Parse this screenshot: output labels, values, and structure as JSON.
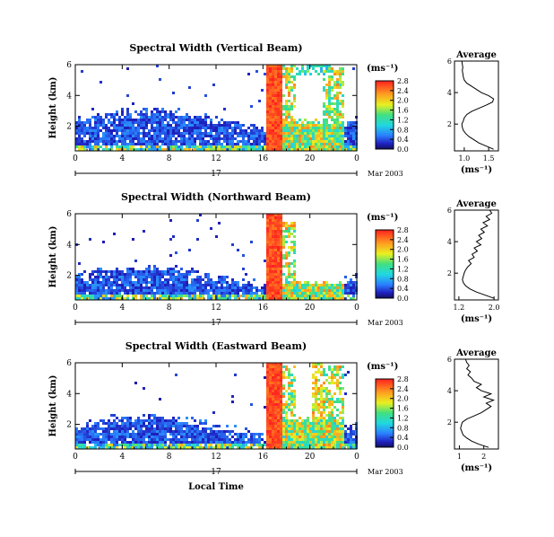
{
  "chart_data": [
    {
      "type": "heatmap",
      "title": "Spectral Width (Vertical Beam)",
      "ylabel": "Height (km)",
      "x_ticks": [
        "0",
        "4",
        "8",
        "12",
        "16",
        "20",
        "0"
      ],
      "y_ticks": [
        "2",
        "4",
        "6"
      ],
      "xlim": [
        0,
        24
      ],
      "ylim": [
        0.4,
        6
      ],
      "day_label": "17",
      "date_label": "Mar 2003",
      "colorbar": {
        "unit": "(ms⁻¹)",
        "ticks": [
          "0.0",
          "0.4",
          "0.8",
          "1.2",
          "1.6",
          "2.0",
          "2.4",
          "2.8"
        ],
        "range": [
          0,
          2.8
        ]
      },
      "average": {
        "title": "Average",
        "xlabel": "(ms⁻¹)",
        "x_ticks": [
          "1.0",
          "1.5"
        ],
        "y_ticks": [
          "2",
          "4",
          "6"
        ],
        "xlim": [
          0.8,
          1.7
        ],
        "ylim": [
          0.3,
          6
        ],
        "profile": [
          [
            0.4,
            1.6
          ],
          [
            0.6,
            1.45
          ],
          [
            0.8,
            1.3
          ],
          [
            1.0,
            1.2
          ],
          [
            1.2,
            1.1
          ],
          [
            1.4,
            1.03
          ],
          [
            1.6,
            0.98
          ],
          [
            1.8,
            0.96
          ],
          [
            2.0,
            0.95
          ],
          [
            2.2,
            0.98
          ],
          [
            2.4,
            1.0
          ],
          [
            2.6,
            1.05
          ],
          [
            2.8,
            1.15
          ],
          [
            3.0,
            1.3
          ],
          [
            3.2,
            1.45
          ],
          [
            3.4,
            1.58
          ],
          [
            3.6,
            1.6
          ],
          [
            3.8,
            1.5
          ],
          [
            4.0,
            1.35
          ],
          [
            4.2,
            1.25
          ],
          [
            4.4,
            1.15
          ],
          [
            4.6,
            1.05
          ],
          [
            4.8,
            1.0
          ],
          [
            5.0,
            0.98
          ],
          [
            5.2,
            0.97
          ],
          [
            5.4,
            0.96
          ],
          [
            5.6,
            0.97
          ],
          [
            5.8,
            0.96
          ],
          [
            6.0,
            0.95
          ]
        ]
      }
    },
    {
      "type": "heatmap",
      "title": "Spectral Width (Northward Beam)",
      "ylabel": "Height (km)",
      "x_ticks": [
        "0",
        "4",
        "8",
        "12",
        "16",
        "20",
        "0"
      ],
      "y_ticks": [
        "2",
        "4",
        "6"
      ],
      "xlim": [
        0,
        24
      ],
      "ylim": [
        0.4,
        6
      ],
      "day_label": "17",
      "date_label": "Mar 2003",
      "colorbar": {
        "unit": "(ms⁻¹)",
        "ticks": [
          "0.0",
          "0.4",
          "0.8",
          "1.2",
          "1.6",
          "2.0",
          "2.4",
          "2.8"
        ],
        "range": [
          0,
          2.8
        ]
      },
      "average": {
        "title": "Average",
        "xlabel": "(ms⁻¹)",
        "x_ticks": [
          "1.2",
          "2.0"
        ],
        "y_ticks": [
          "2",
          "4",
          "6"
        ],
        "xlim": [
          1.1,
          2.1
        ],
        "ylim": [
          0.3,
          6
        ],
        "profile": [
          [
            0.4,
            2.0
          ],
          [
            0.6,
            1.8
          ],
          [
            0.8,
            1.6
          ],
          [
            1.0,
            1.45
          ],
          [
            1.2,
            1.35
          ],
          [
            1.4,
            1.3
          ],
          [
            1.6,
            1.28
          ],
          [
            1.8,
            1.3
          ],
          [
            2.0,
            1.32
          ],
          [
            2.2,
            1.35
          ],
          [
            2.4,
            1.4
          ],
          [
            2.6,
            1.48
          ],
          [
            2.8,
            1.42
          ],
          [
            3.0,
            1.55
          ],
          [
            3.2,
            1.5
          ],
          [
            3.4,
            1.62
          ],
          [
            3.6,
            1.55
          ],
          [
            3.8,
            1.7
          ],
          [
            4.0,
            1.6
          ],
          [
            4.2,
            1.72
          ],
          [
            4.4,
            1.65
          ],
          [
            4.6,
            1.78
          ],
          [
            4.8,
            1.7
          ],
          [
            5.0,
            1.85
          ],
          [
            5.2,
            1.75
          ],
          [
            5.4,
            1.9
          ],
          [
            5.6,
            1.82
          ],
          [
            5.8,
            1.95
          ],
          [
            6.0,
            1.9
          ]
        ]
      }
    },
    {
      "type": "heatmap",
      "title": "Spectral Width (Eastward Beam)",
      "ylabel": "Height (km)",
      "xlabel": "Local Time",
      "x_ticks": [
        "0",
        "4",
        "8",
        "12",
        "16",
        "20",
        "0"
      ],
      "y_ticks": [
        "2",
        "4",
        "6"
      ],
      "xlim": [
        0,
        24
      ],
      "ylim": [
        0.4,
        6
      ],
      "day_label": "17",
      "date_label": "Mar 2003",
      "colorbar": {
        "unit": "(ms⁻¹)",
        "ticks": [
          "0.0",
          "0.4",
          "0.8",
          "1.2",
          "1.6",
          "2.0",
          "2.4",
          "2.8"
        ],
        "range": [
          0,
          2.8
        ]
      },
      "average": {
        "title": "Average",
        "xlabel": "(ms⁻¹)",
        "x_ticks": [
          "1",
          "2"
        ],
        "y_ticks": [
          "2",
          "4",
          "6"
        ],
        "xlim": [
          0.8,
          2.6
        ],
        "ylim": [
          0.3,
          6
        ],
        "profile": [
          [
            0.4,
            2.2
          ],
          [
            0.6,
            1.8
          ],
          [
            0.8,
            1.5
          ],
          [
            1.0,
            1.3
          ],
          [
            1.2,
            1.15
          ],
          [
            1.4,
            1.1
          ],
          [
            1.6,
            1.05
          ],
          [
            1.8,
            1.08
          ],
          [
            2.0,
            1.12
          ],
          [
            2.2,
            1.3
          ],
          [
            2.4,
            1.6
          ],
          [
            2.6,
            1.9
          ],
          [
            2.8,
            2.1
          ],
          [
            3.0,
            2.3
          ],
          [
            3.2,
            2.1
          ],
          [
            3.4,
            2.4
          ],
          [
            3.6,
            2.0
          ],
          [
            3.8,
            2.3
          ],
          [
            4.0,
            1.9
          ],
          [
            4.2,
            1.7
          ],
          [
            4.4,
            1.9
          ],
          [
            4.6,
            1.6
          ],
          [
            4.8,
            1.5
          ],
          [
            5.0,
            1.35
          ],
          [
            5.2,
            1.45
          ],
          [
            5.4,
            1.3
          ],
          [
            5.6,
            1.4
          ],
          [
            5.8,
            1.3
          ],
          [
            6.0,
            1.25
          ]
        ]
      }
    }
  ]
}
